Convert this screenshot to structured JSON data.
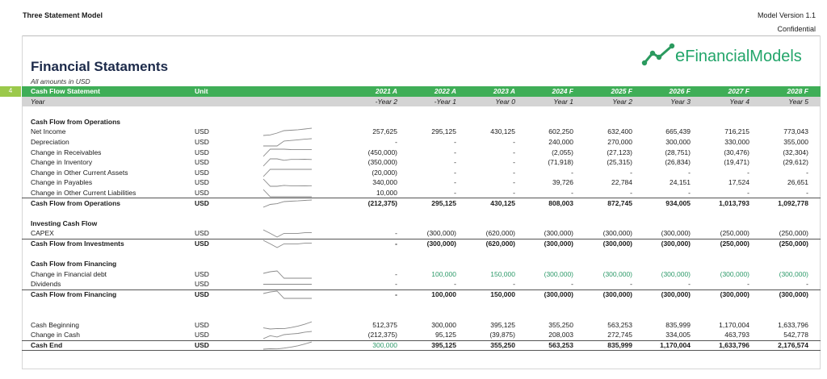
{
  "header": {
    "model_name": "Three Statement Model",
    "version": "Model Version 1.1",
    "confidential": "Confidential"
  },
  "page": {
    "title": "Financial Stataments",
    "subtitle": "All amounts in USD"
  },
  "logo": {
    "text_e": "e",
    "text_rest": "FinancialModels"
  },
  "colors": {
    "header_green": "#3fae57",
    "row_num_green": "#9bc94b",
    "year_row_grey": "#d4d4d4",
    "accent_text_green": "#2e9a6a"
  },
  "table": {
    "row_number": "4",
    "heading": "Cash Flow Statement",
    "unit_heading": "Unit",
    "years": [
      "2021 A",
      "2022 A",
      "2023 A",
      "2024 F",
      "2025 F",
      "2026 F",
      "2027 F",
      "2028 F"
    ],
    "year_label": "Year",
    "periods": [
      "-Year 2",
      "-Year 1",
      "Year 0",
      "Year 1",
      "Year 2",
      "Year 3",
      "Year 4",
      "Year 5"
    ],
    "rows": [
      {
        "type": "section",
        "label": "Cash Flow from Operations"
      },
      {
        "type": "data",
        "label": "Net Income",
        "unit": "USD",
        "values": [
          "257,625",
          "295,125",
          "430,125",
          "602,250",
          "632,400",
          "665,439",
          "716,215",
          "773,043"
        ],
        "spark": [
          257625,
          295125,
          430125,
          602250,
          632400,
          665439,
          716215,
          773043
        ]
      },
      {
        "type": "data",
        "label": "Depreciation",
        "unit": "USD",
        "values": [
          "-",
          "-",
          "-",
          "240,000",
          "270,000",
          "300,000",
          "330,000",
          "355,000"
        ],
        "spark": [
          0,
          0,
          0,
          240000,
          270000,
          300000,
          330000,
          355000
        ]
      },
      {
        "type": "data",
        "label": "Change in Receivables",
        "unit": "USD",
        "values": [
          "(450,000)",
          "-",
          "-",
          "(2,055)",
          "(27,123)",
          "(28,751)",
          "(30,476)",
          "(32,304)"
        ],
        "spark": [
          -450000,
          0,
          0,
          -2055,
          -27123,
          -28751,
          -30476,
          -32304
        ]
      },
      {
        "type": "data",
        "label": "Change in Inventory",
        "unit": "USD",
        "values": [
          "(350,000)",
          "-",
          "-",
          "(71,918)",
          "(25,315)",
          "(26,834)",
          "(19,471)",
          "(29,612)"
        ],
        "spark": [
          -350000,
          0,
          0,
          -71918,
          -25315,
          -26834,
          -19471,
          -29612
        ]
      },
      {
        "type": "data",
        "label": "Change in Other Current Assets",
        "unit": "USD",
        "values": [
          "(20,000)",
          "-",
          "-",
          "-",
          "-",
          "-",
          "-",
          "-"
        ],
        "spark": [
          -20000,
          0,
          0,
          0,
          0,
          0,
          0,
          0
        ]
      },
      {
        "type": "data",
        "label": "Change in Payables",
        "unit": "USD",
        "values": [
          "340,000",
          "-",
          "-",
          "39,726",
          "22,784",
          "24,151",
          "17,524",
          "26,651"
        ],
        "spark": [
          340000,
          0,
          0,
          39726,
          22784,
          24151,
          17524,
          26651
        ]
      },
      {
        "type": "data",
        "label": "Change in Other Current Liabilities",
        "unit": "USD",
        "values": [
          "10,000",
          "-",
          "-",
          "-",
          "-",
          "-",
          "-",
          "-"
        ],
        "spark": [
          10000,
          0,
          0,
          0,
          0,
          0,
          0,
          0
        ]
      },
      {
        "type": "total",
        "label": "Cash Flow from Operations",
        "unit": "USD",
        "values": [
          "(212,375)",
          "295,125",
          "430,125",
          "808,003",
          "872,745",
          "934,005",
          "1,013,793",
          "1,092,778"
        ],
        "spark": [
          -212375,
          295125,
          430125,
          808003,
          872745,
          934005,
          1013793,
          1092778
        ]
      },
      {
        "type": "blank"
      },
      {
        "type": "section",
        "label": "Investing Cash Flow"
      },
      {
        "type": "data",
        "label": "CAPEX",
        "unit": "USD",
        "values": [
          "-",
          "(300,000)",
          "(620,000)",
          "(300,000)",
          "(300,000)",
          "(300,000)",
          "(250,000)",
          "(250,000)"
        ],
        "spark": [
          0,
          -300000,
          -620000,
          -300000,
          -300000,
          -300000,
          -250000,
          -250000
        ]
      },
      {
        "type": "total",
        "label": "Cash Flow from Investments",
        "unit": "USD",
        "values": [
          "-",
          "(300,000)",
          "(620,000)",
          "(300,000)",
          "(300,000)",
          "(300,000)",
          "(250,000)",
          "(250,000)"
        ],
        "spark": [
          0,
          -300000,
          -620000,
          -300000,
          -300000,
          -300000,
          -250000,
          -250000
        ]
      },
      {
        "type": "blank"
      },
      {
        "type": "section",
        "label": "Cash Flow from Financing"
      },
      {
        "type": "data",
        "label": "Change in Financial debt",
        "unit": "USD",
        "green": true,
        "values": [
          "-",
          "100,000",
          "150,000",
          "(300,000)",
          "(300,000)",
          "(300,000)",
          "(300,000)",
          "(300,000)"
        ],
        "spark": [
          0,
          100000,
          150000,
          -300000,
          -300000,
          -300000,
          -300000,
          -300000
        ]
      },
      {
        "type": "data",
        "label": "Dividends",
        "unit": "USD",
        "green": true,
        "values": [
          "-",
          "-",
          "-",
          "-",
          "-",
          "-",
          "-",
          "-"
        ],
        "spark": [
          0,
          0,
          0,
          0,
          0,
          0,
          0,
          0
        ]
      },
      {
        "type": "total",
        "label": "Cash Flow from Financing",
        "unit": "USD",
        "values": [
          "-",
          "100,000",
          "150,000",
          "(300,000)",
          "(300,000)",
          "(300,000)",
          "(300,000)",
          "(300,000)"
        ],
        "spark": [
          0,
          100000,
          150000,
          -300000,
          -300000,
          -300000,
          -300000,
          -300000
        ]
      },
      {
        "type": "blank"
      },
      {
        "type": "blank"
      },
      {
        "type": "data",
        "label": "Cash Beginning",
        "unit": "USD",
        "values": [
          "512,375",
          "300,000",
          "395,125",
          "355,250",
          "563,253",
          "835,999",
          "1,170,004",
          "1,633,796"
        ],
        "spark": [
          512375,
          300000,
          395125,
          355250,
          563253,
          835999,
          1170004,
          1633796
        ]
      },
      {
        "type": "data",
        "label": "Change in Cash",
        "unit": "USD",
        "values": [
          "(212,375)",
          "95,125",
          "(39,875)",
          "208,003",
          "272,745",
          "334,005",
          "463,793",
          "542,778"
        ],
        "spark": [
          -212375,
          95125,
          -39875,
          208003,
          272745,
          334005,
          463793,
          542778
        ]
      },
      {
        "type": "cashend",
        "label": "Cash End",
        "unit": "USD",
        "values": [
          "300,000",
          "395,125",
          "355,250",
          "563,253",
          "835,999",
          "1,170,004",
          "1,633,796",
          "2,176,574"
        ],
        "spark": [
          300000,
          395125,
          355250,
          563253,
          835999,
          1170004,
          1633796,
          2176574
        ]
      }
    ]
  }
}
